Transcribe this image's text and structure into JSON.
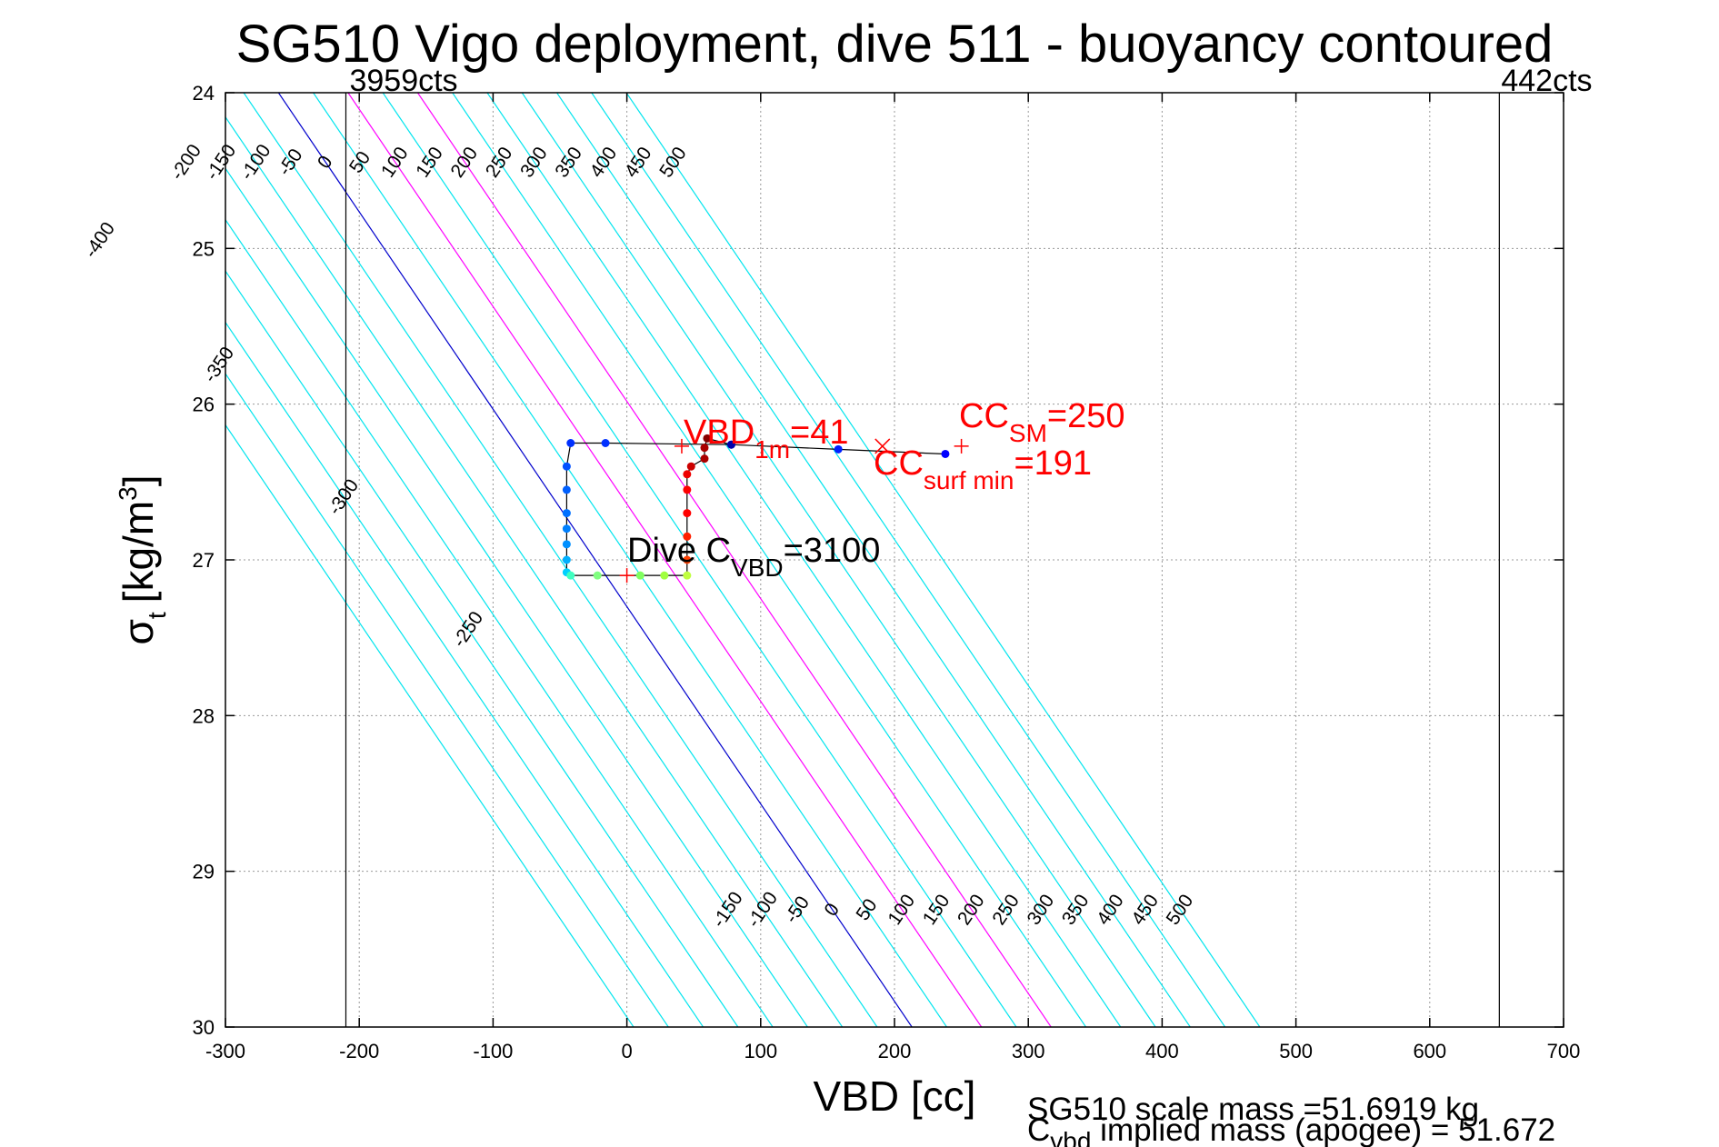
{
  "chart_data": {
    "type": "scatter",
    "title": "SG510 Vigo deployment, dive 511 - buoyancy contoured",
    "xlabel": "VBD [cc]",
    "ylabel_main": "σ",
    "ylabel_sub": "t",
    "ylabel_unit": "[kg/m",
    "ylabel_sup": "3",
    "ylabel_close": "]",
    "xlim": [
      -300,
      700
    ],
    "ylim": [
      24,
      30
    ],
    "y_reversed": true,
    "grid": true,
    "xticks": [
      "-300",
      "-200",
      "-100",
      "0",
      "100",
      "200",
      "300",
      "400",
      "500",
      "600",
      "700"
    ],
    "yticks": [
      "24",
      "25",
      "26",
      "27",
      "28",
      "29",
      "30"
    ],
    "count_limits": [
      {
        "x": -210,
        "label": "3959cts"
      },
      {
        "x": 652,
        "label": "442cts"
      }
    ],
    "contours": {
      "levels": [
        -400,
        -350,
        -300,
        -250,
        -200,
        -150,
        -100,
        -50,
        0,
        50,
        100,
        150,
        200,
        250,
        300,
        350,
        400,
        450,
        500
      ],
      "upper_labels": [
        "-400",
        "-350",
        "-300",
        "-250",
        "-200",
        "-150",
        "-100",
        "-50",
        "0",
        "50",
        "100",
        "150",
        "200",
        "250",
        "300",
        "350",
        "400",
        "450",
        "500"
      ],
      "lower_labels": [
        "-150",
        "-100",
        "-50",
        "0",
        "50",
        "100",
        "150",
        "200",
        "250",
        "300",
        "350",
        "400",
        "450",
        "500"
      ],
      "colors": {
        "default": "#00e5ee",
        "zero": "#0000cc",
        "highlight": "#ff00ff"
      },
      "highlight_levels": [
        100,
        200
      ]
    },
    "dive_path": {
      "color": "#000000",
      "points": [
        {
          "x": 238,
          "y": 26.32,
          "c": "#0000ff"
        },
        {
          "x": 158,
          "y": 26.29,
          "c": "#0020ff"
        },
        {
          "x": 78,
          "y": 26.26,
          "c": "#0030ff"
        },
        {
          "x": -16,
          "y": 26.25,
          "c": "#0030ff"
        },
        {
          "x": -42,
          "y": 26.25,
          "c": "#0030ff"
        },
        {
          "x": -45,
          "y": 26.4,
          "c": "#0050ff"
        },
        {
          "x": -45,
          "y": 26.55,
          "c": "#0060ff"
        },
        {
          "x": -45,
          "y": 26.7,
          "c": "#0070ff"
        },
        {
          "x": -45,
          "y": 26.8,
          "c": "#0080ff"
        },
        {
          "x": -45,
          "y": 26.9,
          "c": "#0090ff"
        },
        {
          "x": -45,
          "y": 27.0,
          "c": "#00b0ff"
        },
        {
          "x": -45,
          "y": 27.08,
          "c": "#00d0ff"
        },
        {
          "x": -42,
          "y": 27.1,
          "c": "#40ffc0"
        },
        {
          "x": -22,
          "y": 27.1,
          "c": "#80ff80"
        },
        {
          "x": 10,
          "y": 27.1,
          "c": "#80ff60"
        },
        {
          "x": 28,
          "y": 27.1,
          "c": "#a0ff40"
        },
        {
          "x": 45,
          "y": 27.1,
          "c": "#c0ff40"
        },
        {
          "x": 45,
          "y": 27.0,
          "c": "#ff4000"
        },
        {
          "x": 45,
          "y": 26.85,
          "c": "#ff2000"
        },
        {
          "x": 45,
          "y": 26.7,
          "c": "#ff0000"
        },
        {
          "x": 45,
          "y": 26.55,
          "c": "#ff0000"
        },
        {
          "x": 45,
          "y": 26.45,
          "c": "#ee0000"
        },
        {
          "x": 48,
          "y": 26.4,
          "c": "#cc0000"
        },
        {
          "x": 58,
          "y": 26.35,
          "c": "#aa0000"
        },
        {
          "x": 58,
          "y": 26.28,
          "c": "#aa0000"
        },
        {
          "x": 60,
          "y": 26.22,
          "c": "#880000"
        },
        {
          "x": 78,
          "y": 26.26,
          "c": "#0000aa"
        }
      ]
    },
    "markers": [
      {
        "x": 41,
        "y": 26.27,
        "symbol": "+",
        "color": "#ff0000"
      },
      {
        "x": 250,
        "y": 26.27,
        "symbol": "+",
        "color": "#ff0000"
      },
      {
        "x": 191,
        "y": 26.27,
        "symbol": "x",
        "color": "#ff0000"
      },
      {
        "x": 0,
        "y": 27.1,
        "symbol": "+",
        "color": "#ff0000"
      }
    ],
    "annotations": {
      "vbd": {
        "main": "VBD",
        "sub": "1m",
        "value": "=41",
        "color": "#ff0000"
      },
      "ccsm": {
        "main": "CC",
        "sub": "SM",
        "value": "=250",
        "color": "#ff0000"
      },
      "ccsurf": {
        "main": "CC",
        "sub": "surf min",
        "value": "=191",
        "color": "#ff0000"
      },
      "cvbd": {
        "main": "Dive C",
        "sub": "VBD",
        "value": "=3100",
        "color": "#000000"
      }
    },
    "footer": {
      "line1": "SG510 scale mass =51.6919 kg",
      "line2_main": "C",
      "line2_sub": "vbd",
      "line2_rest": " implied mass (apogee) = 51.672"
    }
  }
}
